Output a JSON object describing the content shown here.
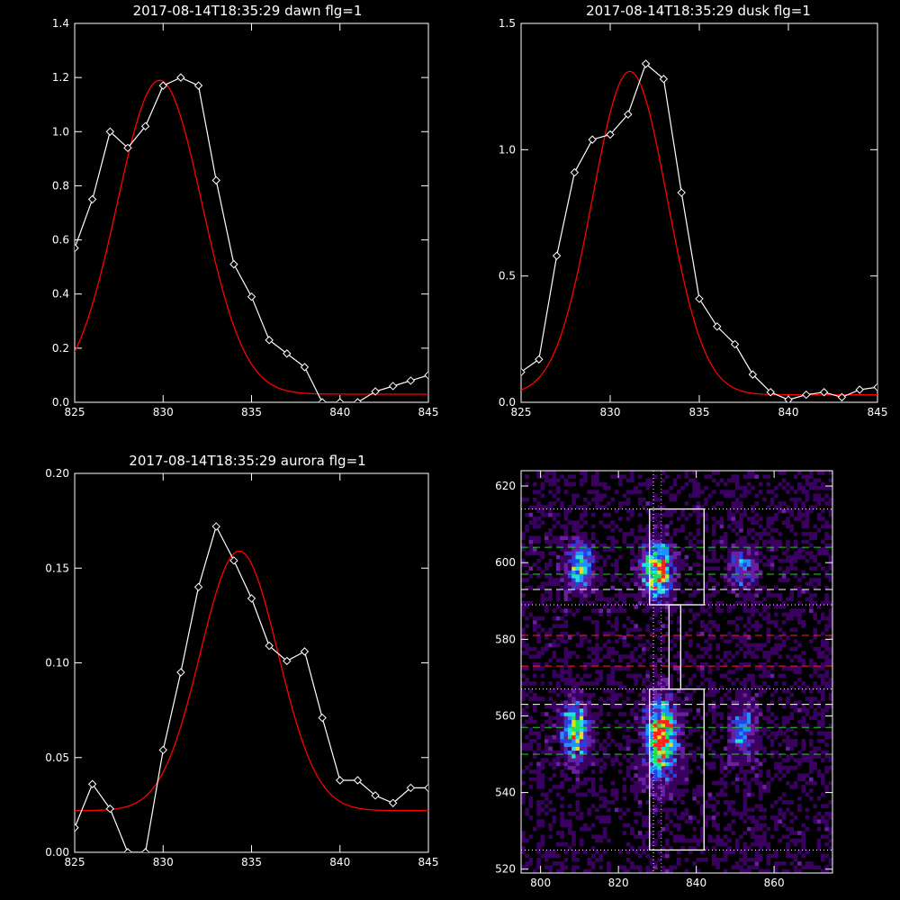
{
  "colors": {
    "background": "#000000",
    "data_line": "#ffffff",
    "fit_line": "#ff0000",
    "axes": "#ffffff"
  },
  "chart_data": [
    {
      "type": "line",
      "title": "2017-08-14T18:35:29 dawn flg=1",
      "xlim": [
        825,
        845
      ],
      "ylim": [
        0,
        1.4
      ],
      "x_ticks": [
        "825",
        "830",
        "835",
        "840",
        "845"
      ],
      "y_ticks": [
        "0.0",
        "0.2",
        "0.4",
        "0.6",
        "0.8",
        "1.0",
        "1.2",
        "1.4"
      ],
      "series": [
        {
          "role": "data",
          "marker": "diamond",
          "color": "#ffffff",
          "x": [
            825,
            826,
            827,
            828,
            829,
            830,
            831,
            832,
            833,
            834,
            835,
            836,
            837,
            838,
            839,
            840,
            841,
            842,
            843,
            844,
            845
          ],
          "y": [
            0.57,
            0.75,
            1.0,
            0.94,
            1.02,
            1.17,
            1.2,
            1.17,
            0.82,
            0.51,
            0.39,
            0.23,
            0.18,
            0.13,
            0.0,
            0.0,
            0.0,
            0.04,
            0.06,
            0.08,
            0.1
          ]
        },
        {
          "role": "fit",
          "color": "#ff0000",
          "gauss": {
            "amp": 1.16,
            "center": 829.8,
            "sigma": 2.4,
            "offset": 0.03
          }
        }
      ]
    },
    {
      "type": "line",
      "title": "2017-08-14T18:35:29 dusk flg=1",
      "xlim": [
        825,
        845
      ],
      "ylim": [
        0,
        1.5
      ],
      "x_ticks": [
        "825",
        "830",
        "835",
        "840",
        "845"
      ],
      "y_ticks": [
        "0.0",
        "0.5",
        "1.0",
        "1.5"
      ],
      "series": [
        {
          "role": "data",
          "marker": "diamond",
          "color": "#ffffff",
          "x": [
            825,
            826,
            827,
            828,
            829,
            830,
            831,
            832,
            833,
            834,
            835,
            836,
            837,
            838,
            839,
            840,
            841,
            842,
            843,
            844,
            845
          ],
          "y": [
            0.12,
            0.17,
            0.58,
            0.91,
            1.04,
            1.06,
            1.14,
            1.34,
            1.28,
            0.83,
            0.41,
            0.3,
            0.23,
            0.11,
            0.04,
            0.01,
            0.03,
            0.04,
            0.02,
            0.05,
            0.06
          ]
        },
        {
          "role": "fit",
          "color": "#ff0000",
          "gauss": {
            "amp": 1.28,
            "center": 831.1,
            "sigma": 2.1,
            "offset": 0.03
          }
        }
      ]
    },
    {
      "type": "line",
      "title": "2017-08-14T18:35:29 aurora flg=1",
      "xlim": [
        825,
        845
      ],
      "ylim": [
        0,
        0.2
      ],
      "x_ticks": [
        "825",
        "830",
        "835",
        "840",
        "845"
      ],
      "y_ticks": [
        "0.00",
        "0.05",
        "0.10",
        "0.15",
        "0.20"
      ],
      "series": [
        {
          "role": "data",
          "marker": "diamond",
          "color": "#ffffff",
          "x": [
            825,
            826,
            827,
            828,
            829,
            830,
            831,
            832,
            833,
            834,
            835,
            836,
            837,
            838,
            839,
            840,
            841,
            842,
            843,
            844,
            845
          ],
          "y": [
            0.013,
            0.036,
            0.023,
            0.0,
            0.0,
            0.054,
            0.095,
            0.14,
            0.172,
            0.154,
            0.134,
            0.109,
            0.101,
            0.106,
            0.071,
            0.038,
            0.038,
            0.03,
            0.026,
            0.034,
            0.034
          ]
        },
        {
          "role": "fit",
          "color": "#ff0000",
          "gauss": {
            "amp": 0.137,
            "center": 834.3,
            "sigma": 2.2,
            "offset": 0.022
          }
        }
      ]
    },
    {
      "type": "heatmap",
      "title": "",
      "xlim": [
        795,
        875
      ],
      "ylim": [
        519,
        624
      ],
      "x_ticks": [
        "800",
        "820",
        "840",
        "860"
      ],
      "y_ticks": [
        "520",
        "540",
        "560",
        "580",
        "600",
        "620"
      ],
      "colormap": [
        "#000000",
        "#3a0060",
        "#6a1fa0",
        "#2a3fe0",
        "#2090ff",
        "#20e0e0",
        "#20e060",
        "#e0e020",
        "#ff2020"
      ],
      "blobs": [
        {
          "x": 810,
          "y": 599,
          "sx": 2.2,
          "sy": 4.0,
          "amp": 0.62
        },
        {
          "x": 830,
          "y": 598,
          "sx": 2.5,
          "sy": 4.5,
          "amp": 0.92
        },
        {
          "x": 852,
          "y": 599,
          "sx": 2.3,
          "sy": 3.8,
          "amp": 0.38
        },
        {
          "x": 809,
          "y": 556,
          "sx": 2.2,
          "sy": 5.0,
          "amp": 0.66
        },
        {
          "x": 831,
          "y": 554,
          "sx": 2.6,
          "sy": 7.0,
          "amp": 0.92
        },
        {
          "x": 852,
          "y": 556,
          "sx": 2.3,
          "sy": 5.0,
          "amp": 0.38
        }
      ],
      "background_noise": 0.22,
      "overlays": {
        "boxes": [
          {
            "x0": 828,
            "x1": 842,
            "y0": 589,
            "y1": 614,
            "color": "#ffffff"
          },
          {
            "x0": 833,
            "x1": 836,
            "y0": 567,
            "y1": 589,
            "color": "#ffffff"
          },
          {
            "x0": 828,
            "x1": 842,
            "y0": 525,
            "y1": 567,
            "color": "#ffffff"
          }
        ],
        "hlines": [
          {
            "y": 614,
            "color": "#ffffff",
            "style": "dotted"
          },
          {
            "y": 604,
            "color": "#20d020",
            "style": "dashed"
          },
          {
            "y": 597,
            "color": "#20d020",
            "style": "dashed"
          },
          {
            "y": 593,
            "color": "#ffffff",
            "style": "dashed"
          },
          {
            "y": 589,
            "color": "#ffffff",
            "style": "dotted"
          },
          {
            "y": 581,
            "color": "#ff2020",
            "style": "dashed"
          },
          {
            "y": 573,
            "color": "#ff2020",
            "style": "dashed"
          },
          {
            "y": 567,
            "color": "#ffffff",
            "style": "dotted"
          },
          {
            "y": 563,
            "color": "#ffffff",
            "style": "dashed"
          },
          {
            "y": 557,
            "color": "#20d020",
            "style": "dashed"
          },
          {
            "y": 550,
            "color": "#20d020",
            "style": "dashed"
          },
          {
            "y": 525,
            "color": "#ffffff",
            "style": "dotted"
          }
        ],
        "vlines": [
          {
            "x": 829,
            "color": "#ffffff",
            "style": "dotted"
          },
          {
            "x": 831,
            "color": "#ff80ff",
            "style": "dotted"
          }
        ]
      }
    }
  ]
}
